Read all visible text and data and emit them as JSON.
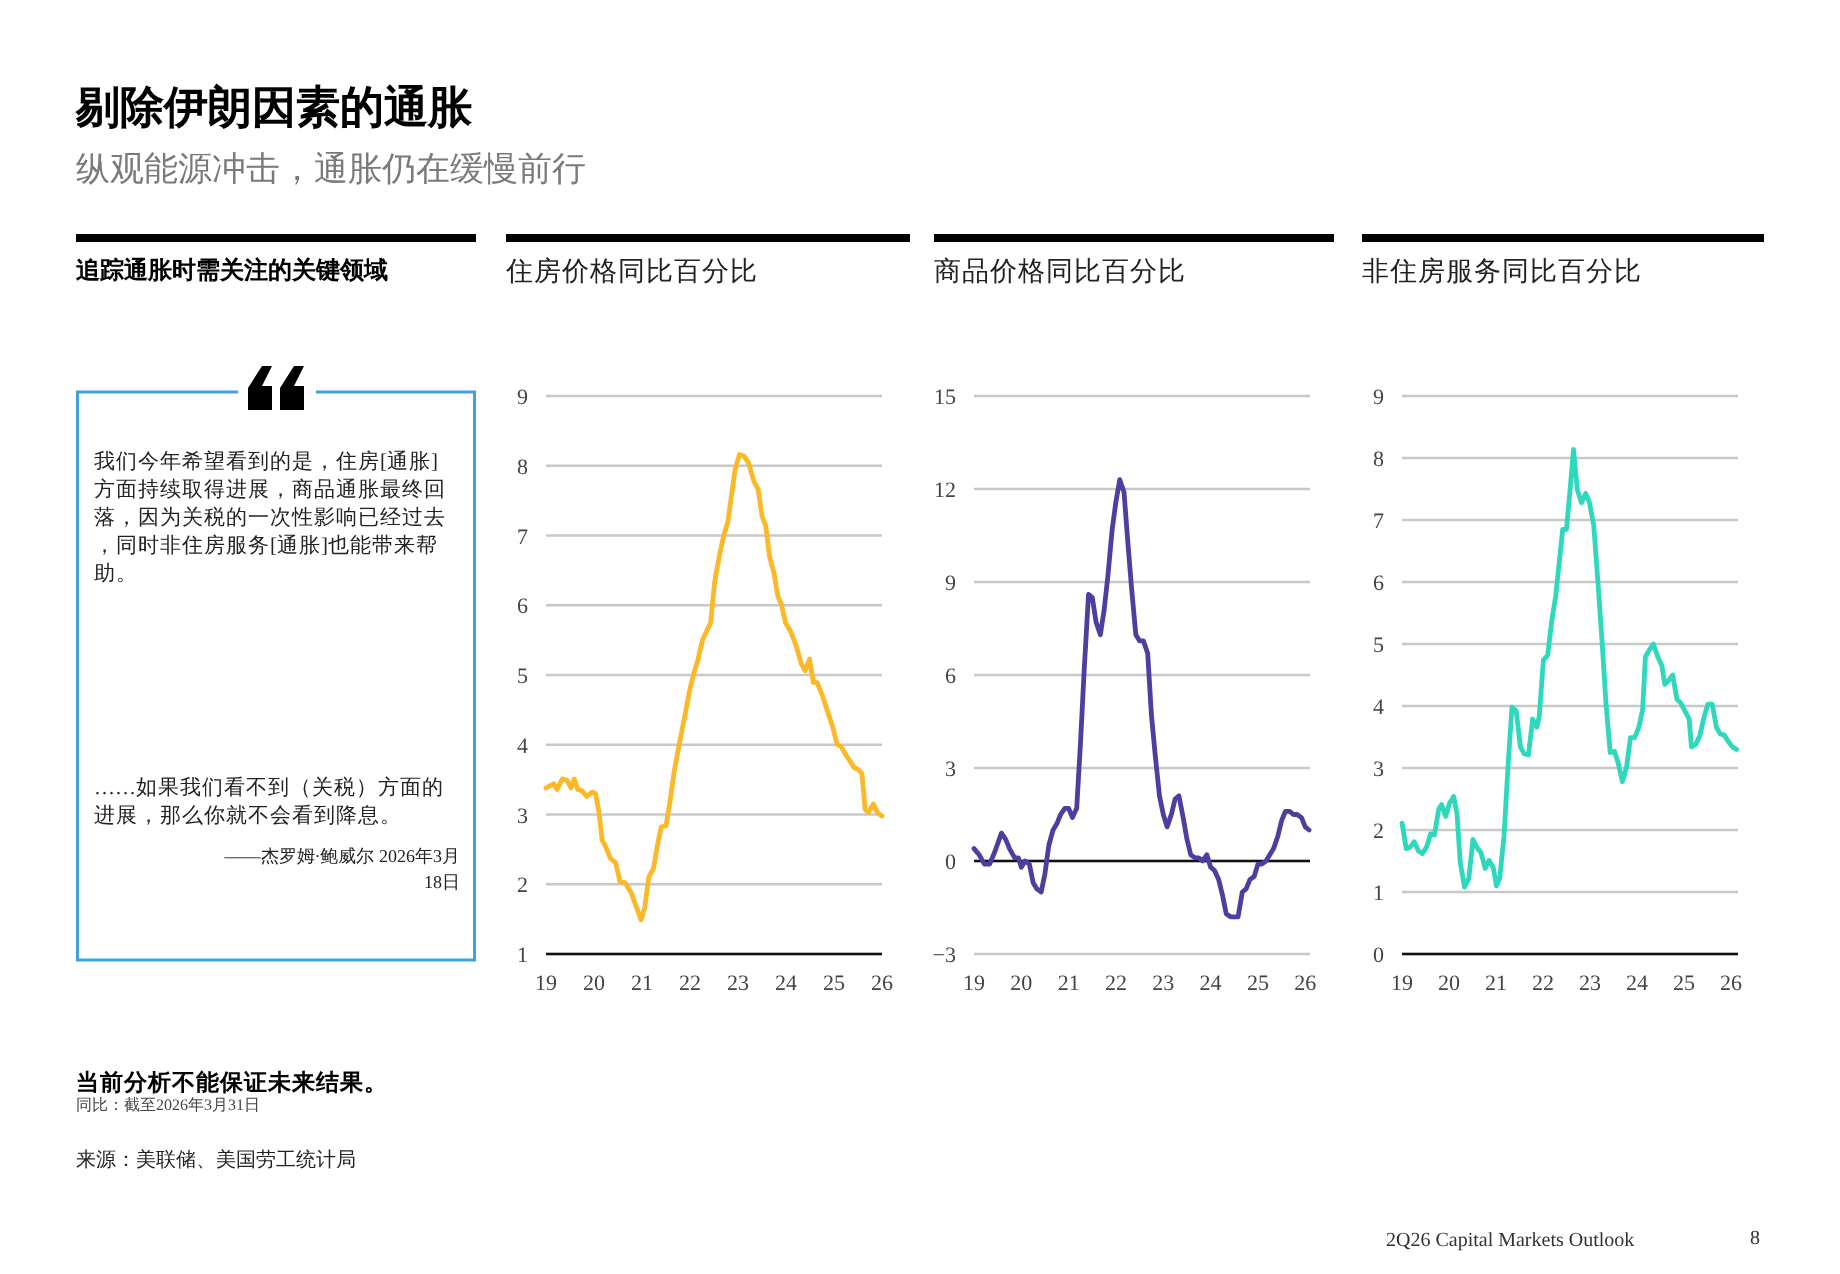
{
  "chart_data": [
    {
      "type": "other",
      "title": "剔除伊朗因素的通胀",
      "subtitle": "纵观能源冲击，通胀仍在缓慢前行",
      "annotations": [
        "当前分析不能保证未来结果。",
        "同比：截至2026年3月31日",
        "来源：美联储、美国劳工统计局",
        "2Q26 Capital Markets Outlook",
        "8"
      ]
    },
    {
      "type": "other",
      "title": "追踪通胀时需关注的关键领域",
      "annotations": [
        "我们今年希望看到的是，住房[通胀]方面持续取得进展，商品通胀最终回落，因为关税的一次性影响已经过去，同时非住房服务[通胀]也能带来帮助。",
        "……如果我们看不到（关税）方面的进展，那么你就不会看到降息。",
        "——杰罗姆·鲍威尔 2026年3月18日"
      ]
    },
    {
      "type": "line",
      "title": "住房价格同比百分比",
      "x": [
        19.0,
        19.16,
        19.23,
        19.34,
        19.44,
        19.52,
        19.59,
        19.66,
        19.75,
        19.85,
        19.96,
        20.03,
        20.1,
        20.17,
        20.23,
        20.34,
        20.45,
        20.54,
        20.65,
        20.78,
        20.89,
        20.98,
        21.06,
        21.14,
        21.24,
        21.33,
        21.4,
        21.5,
        21.58,
        21.67,
        21.77,
        21.88,
        21.99,
        22.07,
        22.15,
        22.26,
        22.36,
        22.43,
        22.51,
        22.62,
        22.7,
        22.79,
        22.87,
        22.94,
        23.03,
        23.12,
        23.22,
        23.33,
        23.42,
        23.5,
        23.58,
        23.66,
        23.75,
        23.83,
        23.91,
        23.99,
        24.1,
        24.21,
        24.32,
        24.4,
        24.49,
        24.57,
        24.65,
        24.76,
        24.87,
        24.98,
        25.06,
        25.15,
        25.26,
        25.34,
        25.42,
        25.5,
        25.58,
        25.65,
        25.72,
        25.82,
        25.91,
        26.0
      ],
      "series": [
        {
          "color": "#fdb827",
          "values": [
            3.38,
            3.44,
            3.36,
            3.51,
            3.49,
            3.38,
            3.51,
            3.36,
            3.34,
            3.26,
            3.32,
            3.3,
            3.05,
            2.63,
            2.56,
            2.37,
            2.31,
            2.04,
            2.02,
            1.87,
            1.66,
            1.49,
            1.68,
            2.1,
            2.23,
            2.59,
            2.82,
            2.84,
            3.17,
            3.61,
            3.99,
            4.37,
            4.77,
            5.0,
            5.18,
            5.5,
            5.65,
            5.75,
            6.32,
            6.74,
            6.99,
            7.2,
            7.6,
            7.95,
            8.16,
            8.14,
            8.04,
            7.78,
            7.66,
            7.28,
            7.13,
            6.69,
            6.46,
            6.13,
            6.0,
            5.75,
            5.62,
            5.42,
            5.16,
            5.06,
            5.23,
            4.89,
            4.89,
            4.7,
            4.47,
            4.24,
            4.01,
            3.97,
            3.84,
            3.76,
            3.67,
            3.65,
            3.59,
            3.07,
            3.03,
            3.15,
            3.02,
            2.98
          ]
        }
      ],
      "xlim": [
        19,
        26
      ],
      "xticks": [
        19,
        20,
        21,
        22,
        23,
        24,
        25,
        26
      ],
      "ylim": [
        1,
        9
      ],
      "yticks": [
        1,
        2,
        3,
        4,
        5,
        6,
        7,
        8,
        9
      ],
      "grid": "y"
    },
    {
      "type": "line",
      "title": "商品价格同比百分比",
      "x": [
        19.0,
        19.11,
        19.22,
        19.33,
        19.44,
        19.58,
        19.67,
        19.75,
        19.86,
        19.94,
        20.0,
        20.08,
        20.17,
        20.25,
        20.33,
        20.42,
        20.5,
        20.58,
        20.67,
        20.75,
        20.83,
        20.92,
        21.0,
        21.08,
        21.17,
        21.25,
        21.33,
        21.42,
        21.5,
        21.58,
        21.67,
        21.75,
        21.83,
        21.92,
        22.0,
        22.08,
        22.17,
        22.25,
        22.33,
        22.42,
        22.5,
        22.58,
        22.67,
        22.75,
        22.83,
        22.92,
        23.0,
        23.08,
        23.17,
        23.25,
        23.33,
        23.42,
        23.5,
        23.58,
        23.67,
        23.75,
        23.83,
        23.92,
        24.0,
        24.08,
        24.17,
        24.25,
        24.33,
        24.42,
        24.5,
        24.58,
        24.67,
        24.75,
        24.83,
        24.92,
        25.0,
        25.08,
        25.17,
        25.25,
        25.33,
        25.42,
        25.5,
        25.58,
        25.67,
        25.75,
        25.83,
        25.92,
        26.0,
        26.08
      ],
      "series": [
        {
          "color": "#4c3fa0",
          "values": [
            0.4,
            0.2,
            -0.1,
            -0.1,
            0.3,
            0.9,
            0.7,
            0.4,
            0.1,
            0.1,
            -0.2,
            0.0,
            -0.1,
            -0.7,
            -0.9,
            -1.0,
            -0.4,
            0.5,
            1.0,
            1.2,
            1.5,
            1.7,
            1.7,
            1.4,
            1.7,
            3.8,
            6.2,
            8.6,
            8.5,
            7.7,
            7.3,
            8.1,
            9.2,
            10.7,
            11.6,
            12.3,
            11.9,
            10.3,
            8.8,
            7.3,
            7.1,
            7.1,
            6.7,
            4.7,
            3.4,
            2.1,
            1.5,
            1.1,
            1.5,
            2.0,
            2.1,
            1.4,
            0.7,
            0.2,
            0.1,
            0.1,
            0.0,
            0.2,
            -0.2,
            -0.3,
            -0.6,
            -1.1,
            -1.7,
            -1.8,
            -1.8,
            -1.8,
            -1.0,
            -0.9,
            -0.6,
            -0.5,
            -0.1,
            -0.1,
            0.0,
            0.2,
            0.4,
            0.8,
            1.3,
            1.6,
            1.6,
            1.5,
            1.5,
            1.4,
            1.1,
            1.0
          ]
        }
      ],
      "xlim": [
        19,
        26.1
      ],
      "xticks": [
        19,
        20,
        21,
        22,
        23,
        24,
        25,
        26
      ],
      "ylim": [
        -3,
        15
      ],
      "yticks": [
        {
          "value": -3,
          "label": "−3"
        },
        0,
        3,
        6,
        9,
        12,
        15
      ],
      "grid": "y"
    },
    {
      "type": "line",
      "title": "非住房服务同比百分比",
      "x": [
        19.0,
        19.09,
        19.17,
        19.26,
        19.35,
        19.43,
        19.52,
        19.61,
        19.69,
        19.78,
        19.84,
        19.93,
        20.01,
        20.1,
        20.17,
        20.24,
        20.33,
        20.42,
        20.51,
        20.59,
        20.68,
        20.77,
        20.85,
        20.94,
        21.01,
        21.08,
        21.17,
        21.26,
        21.34,
        21.43,
        21.52,
        21.6,
        21.69,
        21.78,
        21.87,
        21.92,
        22.01,
        22.1,
        22.18,
        22.27,
        22.36,
        22.42,
        22.5,
        22.59,
        22.65,
        22.73,
        22.82,
        22.91,
        22.99,
        23.08,
        23.17,
        23.25,
        23.34,
        23.43,
        23.52,
        23.6,
        23.69,
        23.78,
        23.86,
        23.95,
        24.04,
        24.12,
        24.18,
        24.27,
        24.35,
        24.44,
        24.53,
        24.59,
        24.67,
        24.76,
        24.85,
        24.93,
        25.02,
        25.11,
        25.16,
        25.25,
        25.34,
        25.43,
        25.51,
        25.6,
        25.69,
        25.77,
        25.86,
        25.95,
        26.03,
        26.12
      ],
      "series": [
        {
          "color": "#2dd8bd",
          "values": [
            2.11,
            1.7,
            1.72,
            1.81,
            1.66,
            1.62,
            1.72,
            1.94,
            1.92,
            2.33,
            2.41,
            2.22,
            2.43,
            2.54,
            2.26,
            1.47,
            1.08,
            1.21,
            1.85,
            1.72,
            1.64,
            1.38,
            1.51,
            1.4,
            1.1,
            1.23,
            1.9,
            3.08,
            3.98,
            3.92,
            3.34,
            3.23,
            3.21,
            3.79,
            3.66,
            3.83,
            4.74,
            4.82,
            5.34,
            5.77,
            6.42,
            6.85,
            6.85,
            7.6,
            8.14,
            7.49,
            7.28,
            7.43,
            7.28,
            6.91,
            5.99,
            5.12,
            4.05,
            3.25,
            3.27,
            3.08,
            2.78,
            3.02,
            3.49,
            3.49,
            3.66,
            3.94,
            4.8,
            4.91,
            5.0,
            4.8,
            4.65,
            4.35,
            4.41,
            4.5,
            4.11,
            4.05,
            3.92,
            3.79,
            3.34,
            3.38,
            3.53,
            3.83,
            4.03,
            4.03,
            3.66,
            3.55,
            3.53,
            3.42,
            3.34,
            3.3
          ]
        }
      ],
      "xlim": [
        19,
        26.15
      ],
      "xticks": [
        19,
        20,
        21,
        22,
        23,
        24,
        25,
        26
      ],
      "ylim": [
        0,
        9
      ],
      "yticks": [
        0,
        1,
        2,
        3,
        4,
        5,
        6,
        7,
        8,
        9
      ],
      "grid": "y"
    }
  ]
}
